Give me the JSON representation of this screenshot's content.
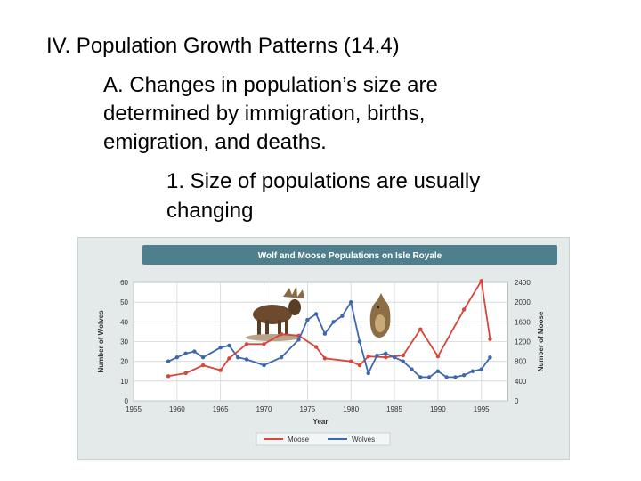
{
  "slide": {
    "heading": "IV. Population Growth Patterns (14.4)",
    "point_a_lines": [
      "A. Changes in population’s size are",
      "determined by immigration, births,",
      "emigration, and deaths."
    ],
    "point_1_lines": [
      "1. Size of populations are usually",
      "changing"
    ]
  },
  "chart_data": {
    "type": "line",
    "title": "Wolf and Moose Populations on Isle Royale",
    "xlabel": "Year",
    "ylabel_left": "Number of Wolves",
    "ylabel_right": "Number of Moose",
    "xlim": [
      1955,
      1998
    ],
    "x_ticks": [
      "1955",
      "1960",
      "1965",
      "1970",
      "1975",
      "1980",
      "1985",
      "1990",
      "1995"
    ],
    "ylim_left": [
      0,
      60
    ],
    "y_ticks_left": [
      "0",
      "10",
      "20",
      "30",
      "40",
      "50",
      "60"
    ],
    "ylim_right": [
      0,
      2400
    ],
    "y_ticks_right": [
      "0",
      "400",
      "800",
      "1200",
      "1600",
      "2000",
      "2400"
    ],
    "grid": true,
    "legend_position": "bottom",
    "colors": {
      "moose": "#d9453a",
      "wolves": "#3f66b0",
      "plot_bg": "#ffffff",
      "title_bar": "#4f7f8c",
      "frame_bg": "#e4eaea"
    },
    "series": [
      {
        "name": "Moose",
        "axis": "right",
        "x": [
          1959,
          1961,
          1963,
          1965,
          1966,
          1968,
          1970,
          1972,
          1974,
          1976,
          1977,
          1980,
          1981,
          1982,
          1984,
          1986,
          1988,
          1990,
          1993,
          1995,
          1996
        ],
        "y": [
          500,
          560,
          720,
          620,
          860,
          1150,
          1150,
          1350,
          1320,
          1090,
          860,
          800,
          720,
          900,
          880,
          920,
          1450,
          900,
          1850,
          2430,
          1250
        ]
      },
      {
        "name": "Wolves",
        "axis": "left",
        "x": [
          1959,
          1960,
          1961,
          1962,
          1963,
          1965,
          1966,
          1967,
          1968,
          1970,
          1972,
          1974,
          1975,
          1976,
          1977,
          1978,
          1979,
          1980,
          1981,
          1982,
          1983,
          1984,
          1985,
          1986,
          1987,
          1988,
          1989,
          1990,
          1991,
          1992,
          1993,
          1994,
          1995,
          1996
        ],
        "y": [
          20,
          22,
          24,
          25,
          22,
          27,
          28,
          22,
          21,
          18,
          22,
          31,
          41,
          44,
          34,
          40,
          43,
          50,
          30,
          14,
          23,
          24,
          22,
          20,
          16,
          12,
          12,
          15,
          12,
          12,
          13,
          15,
          16,
          22
        ]
      }
    ]
  }
}
